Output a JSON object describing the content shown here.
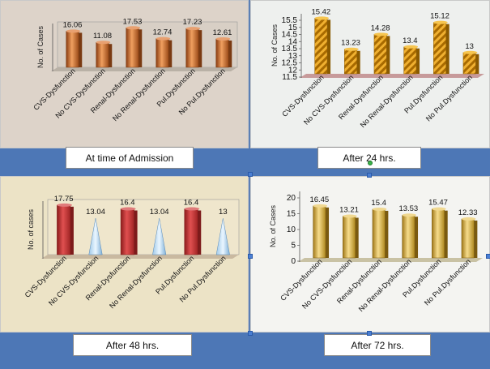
{
  "panels": [
    {
      "caption": "At time of Admission",
      "chart_data": {
        "type": "bar",
        "ylabel": "No. of Cases",
        "categories": [
          "CVS-Dysfunction",
          "No CVS-Dysfunction",
          "Renal-Dysfunction",
          "No Renal-Dysfunction",
          "Pul.Dysfunction",
          "No Pul.Dysfunction"
        ],
        "values": [
          16.06,
          11.08,
          17.53,
          12.74,
          17.23,
          12.61
        ],
        "value_labels": [
          "16.06",
          "11.08",
          "17.53",
          "12.74",
          "17.23",
          "12.61"
        ],
        "ylim": [
          0,
          18
        ],
        "ticks": [],
        "style": "copper"
      }
    },
    {
      "caption": "After 24 hrs.",
      "chart_data": {
        "type": "bar",
        "ylabel": "No. of Cases",
        "categories": [
          "CVS-Dysfunction",
          "No CVS-Dysfunction",
          "Renal-Dysfunction",
          "No Renal-Dysfunction",
          "Pul.Dysfunction",
          "No Pul.Dysfunction"
        ],
        "values": [
          15.42,
          13.23,
          14.28,
          13.4,
          15.12,
          13
        ],
        "value_labels": [
          "15.42",
          "13.23",
          "14.28",
          "13.4",
          "15.12",
          "13"
        ],
        "ylim": [
          11.5,
          15.5
        ],
        "ticks": [
          "11.5",
          "12",
          "12.5",
          "13",
          "13.5",
          "14",
          "14.5",
          "15",
          "15.5"
        ],
        "style": "striped"
      }
    },
    {
      "caption": "After 48 hrs.",
      "chart_data": {
        "type": "bar",
        "ylabel": "No. of cases",
        "categories": [
          "CVS-Dysfunction",
          "No CVS-Dysfunction",
          "Renal-Dysfunction",
          "No Renal-Dysfunction",
          "Pul.Dysfunction",
          "No Pul.Dysfunction"
        ],
        "values": [
          17.75,
          13.04,
          16.4,
          13.04,
          16.4,
          13
        ],
        "value_labels": [
          "17.75",
          "13.04",
          "16.4",
          "13.04",
          "16.4",
          "13"
        ],
        "ylim": [
          0,
          18
        ],
        "ticks": [],
        "style": "cone"
      }
    },
    {
      "caption": "After 72 hrs.",
      "chart_data": {
        "type": "bar",
        "ylabel": "No. of Cases",
        "categories": [
          "CVS-Dysfunction",
          "No CVS-Dysfunction",
          "Renal-Dysfunction",
          "No Renal-Dysfunction",
          "Pul.Dysfunction",
          "No Pul.Dysfunction"
        ],
        "values": [
          16.45,
          13.21,
          15.4,
          13.53,
          15.47,
          12.33
        ],
        "value_labels": [
          "16.45",
          "13.21",
          "15.4",
          "13.53",
          "15.47",
          "12.33"
        ],
        "ylim": [
          0,
          20
        ],
        "ticks": [
          "0",
          "5",
          "10",
          "15",
          "20"
        ],
        "style": "gold"
      }
    }
  ]
}
